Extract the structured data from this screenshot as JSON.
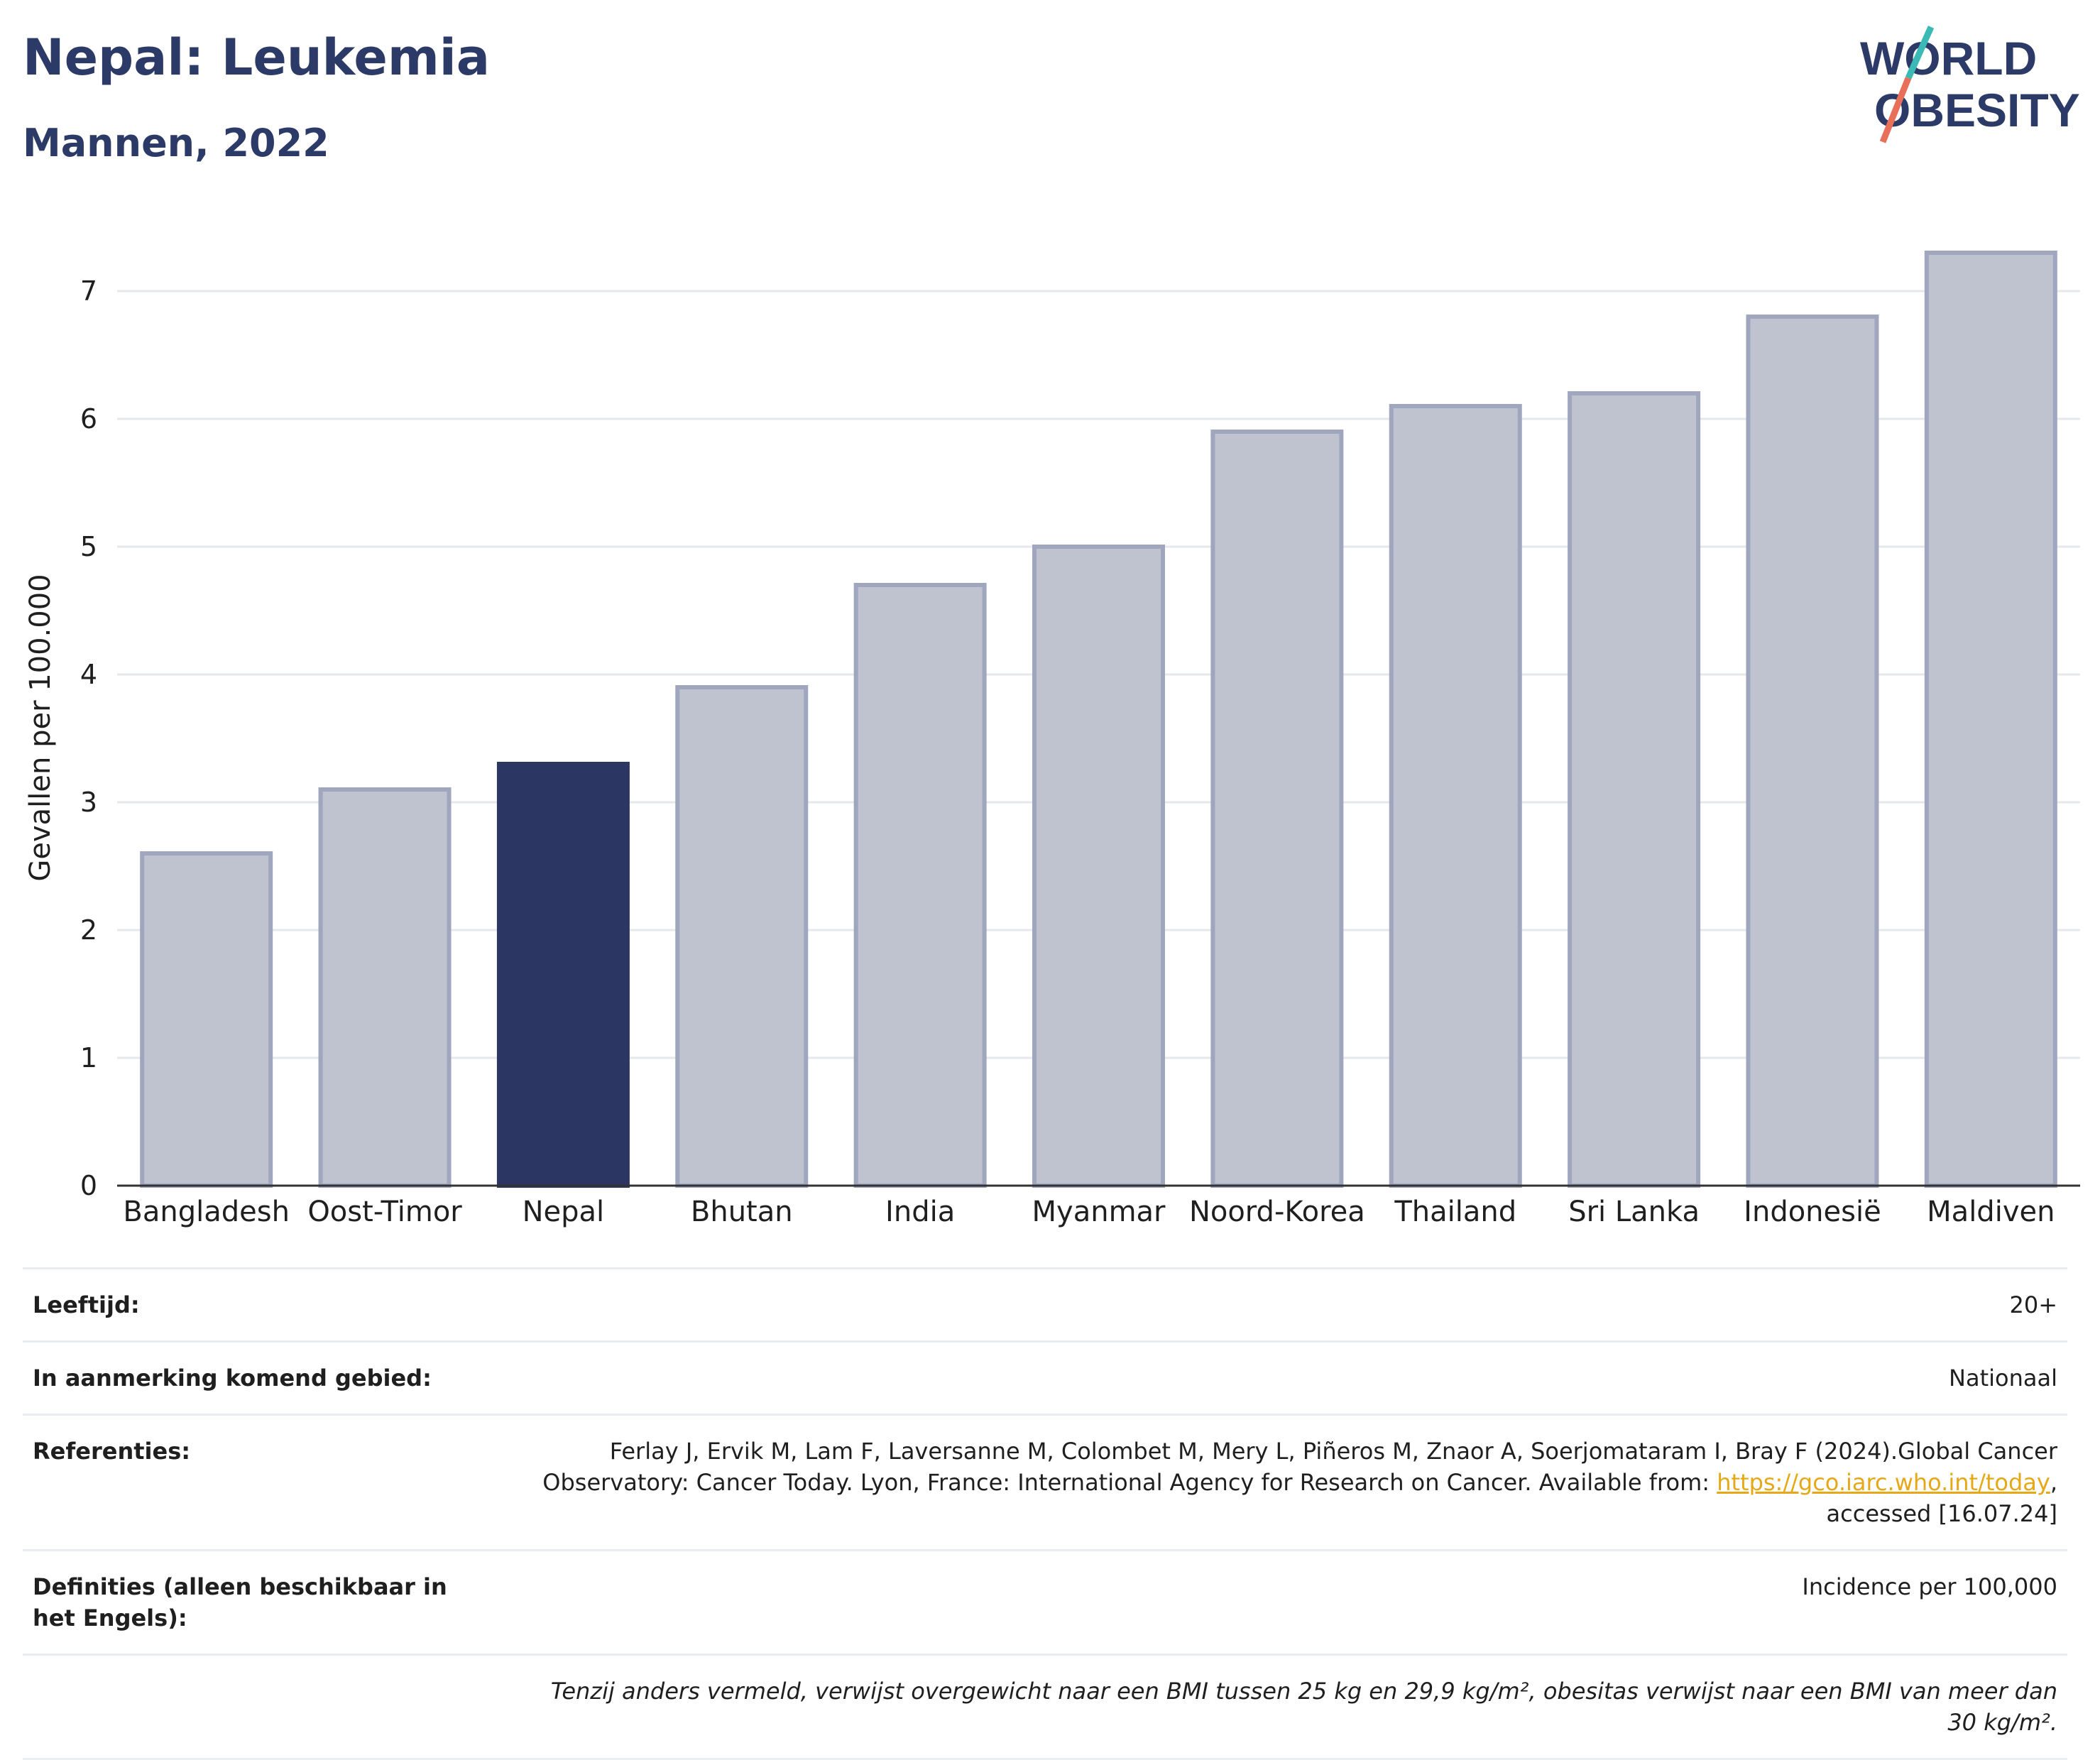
{
  "header": {
    "title": "Nepal: Leukemia",
    "subtitle": "Mannen, 2022"
  },
  "logo": {
    "line1": "WORLD",
    "line2": "OBESITY",
    "accent_teal": "#3bb9b5",
    "accent_coral": "#e8705b",
    "text_color": "#2b3a67"
  },
  "colors": {
    "highlight_bar": "#2b3663",
    "other_bar": "#bfc3cf",
    "other_bar_border": "#9fa6bd"
  },
  "chart_data": {
    "type": "bar",
    "categories": [
      "Bangladesh",
      "Oost-Timor",
      "Nepal",
      "Bhutan",
      "India",
      "Myanmar",
      "Noord-Korea",
      "Thailand",
      "Sri Lanka",
      "Indonesië",
      "Maldiven"
    ],
    "values": [
      2.6,
      3.1,
      3.3,
      3.9,
      4.7,
      5.0,
      5.9,
      6.1,
      6.2,
      6.8,
      7.3
    ],
    "highlight": "Nepal",
    "ylabel": "Gevallen per 100.000",
    "ylim": [
      0,
      7.5
    ],
    "yticks": [
      0,
      1,
      2,
      3,
      4,
      5,
      6,
      7
    ],
    "grid": true
  },
  "meta": {
    "age_label": "Leeftijd:",
    "age_value": "20+",
    "area_label": "In aanmerking komend gebied:",
    "area_value": "Nationaal",
    "ref_label": "Referenties:",
    "ref_text_before": "Ferlay J, Ervik M, Lam F, Laversanne M, Colombet M, Mery L, Piñeros M, Znaor A, Soerjomataram I, Bray F (2024).Global Cancer Observatory: Cancer Today. Lyon, France: International Agency for Research on Cancer. Available from: ",
    "ref_link": "https://gco.iarc.who.int/today",
    "ref_text_after": ", accessed [16.07.24]",
    "def_label": "Definities (alleen beschikbaar in het Engels):",
    "def_value": "Incidence per 100,000",
    "note": "Tenzij anders vermeld, verwijst overgewicht naar een BMI tussen 25 kg en 29,9 kg/m², obesitas verwijst naar een BMI van meer dan 30 kg/m²."
  }
}
